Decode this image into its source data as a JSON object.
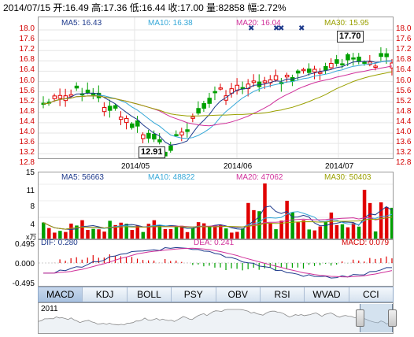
{
  "header": {
    "text": "2014/07/15 开:16.49 高:17.36 低:16.44 收:17.00 量:82858 幅:2.72%"
  },
  "price_panel": {
    "legend": {
      "ma5": "MA5: 16.43",
      "ma10": "MA10: 16.38",
      "ma20": "MA20: 16.04",
      "ma30": "MA30: 15.95"
    },
    "y_ticks": [
      "18.0",
      "17.6",
      "17.2",
      "16.8",
      "16.4",
      "16.0",
      "15.6",
      "15.2",
      "14.8",
      "14.4",
      "14.0",
      "13.6",
      "13.2",
      "12.8"
    ],
    "x_ticks": [
      "2014/05",
      "2014/06",
      "2014/07"
    ],
    "high_label": "17.70",
    "low_label": "12.91"
  },
  "volume_panel": {
    "legend": {
      "ma5": "MA5: 56663",
      "ma10": "MA10: 48822",
      "ma20": "MA20: 47062",
      "ma30": "MA30: 50403"
    },
    "y_ticks": [
      "15",
      "11",
      "8",
      "4"
    ],
    "unit": "x万"
  },
  "macd_panel": {
    "dif": "DIF: 0.280",
    "dea": "DEA: 0.241",
    "macd": "MACD: 0.079",
    "y_ticks": [
      "0.495",
      "0.000",
      "-0.495"
    ]
  },
  "tabs": [
    "MACD",
    "KDJ",
    "BOLL",
    "PSY",
    "OBV",
    "RSI",
    "WVAD",
    "CCI"
  ],
  "navigator": {
    "year_label": "2011"
  },
  "colors": {
    "up": "#e00000",
    "down": "#00a000",
    "ma5": "#1e3a8c",
    "ma10": "#36a8d8",
    "ma20": "#d0309a",
    "ma30": "#9aa000",
    "price_axis": "#d40000"
  }
}
